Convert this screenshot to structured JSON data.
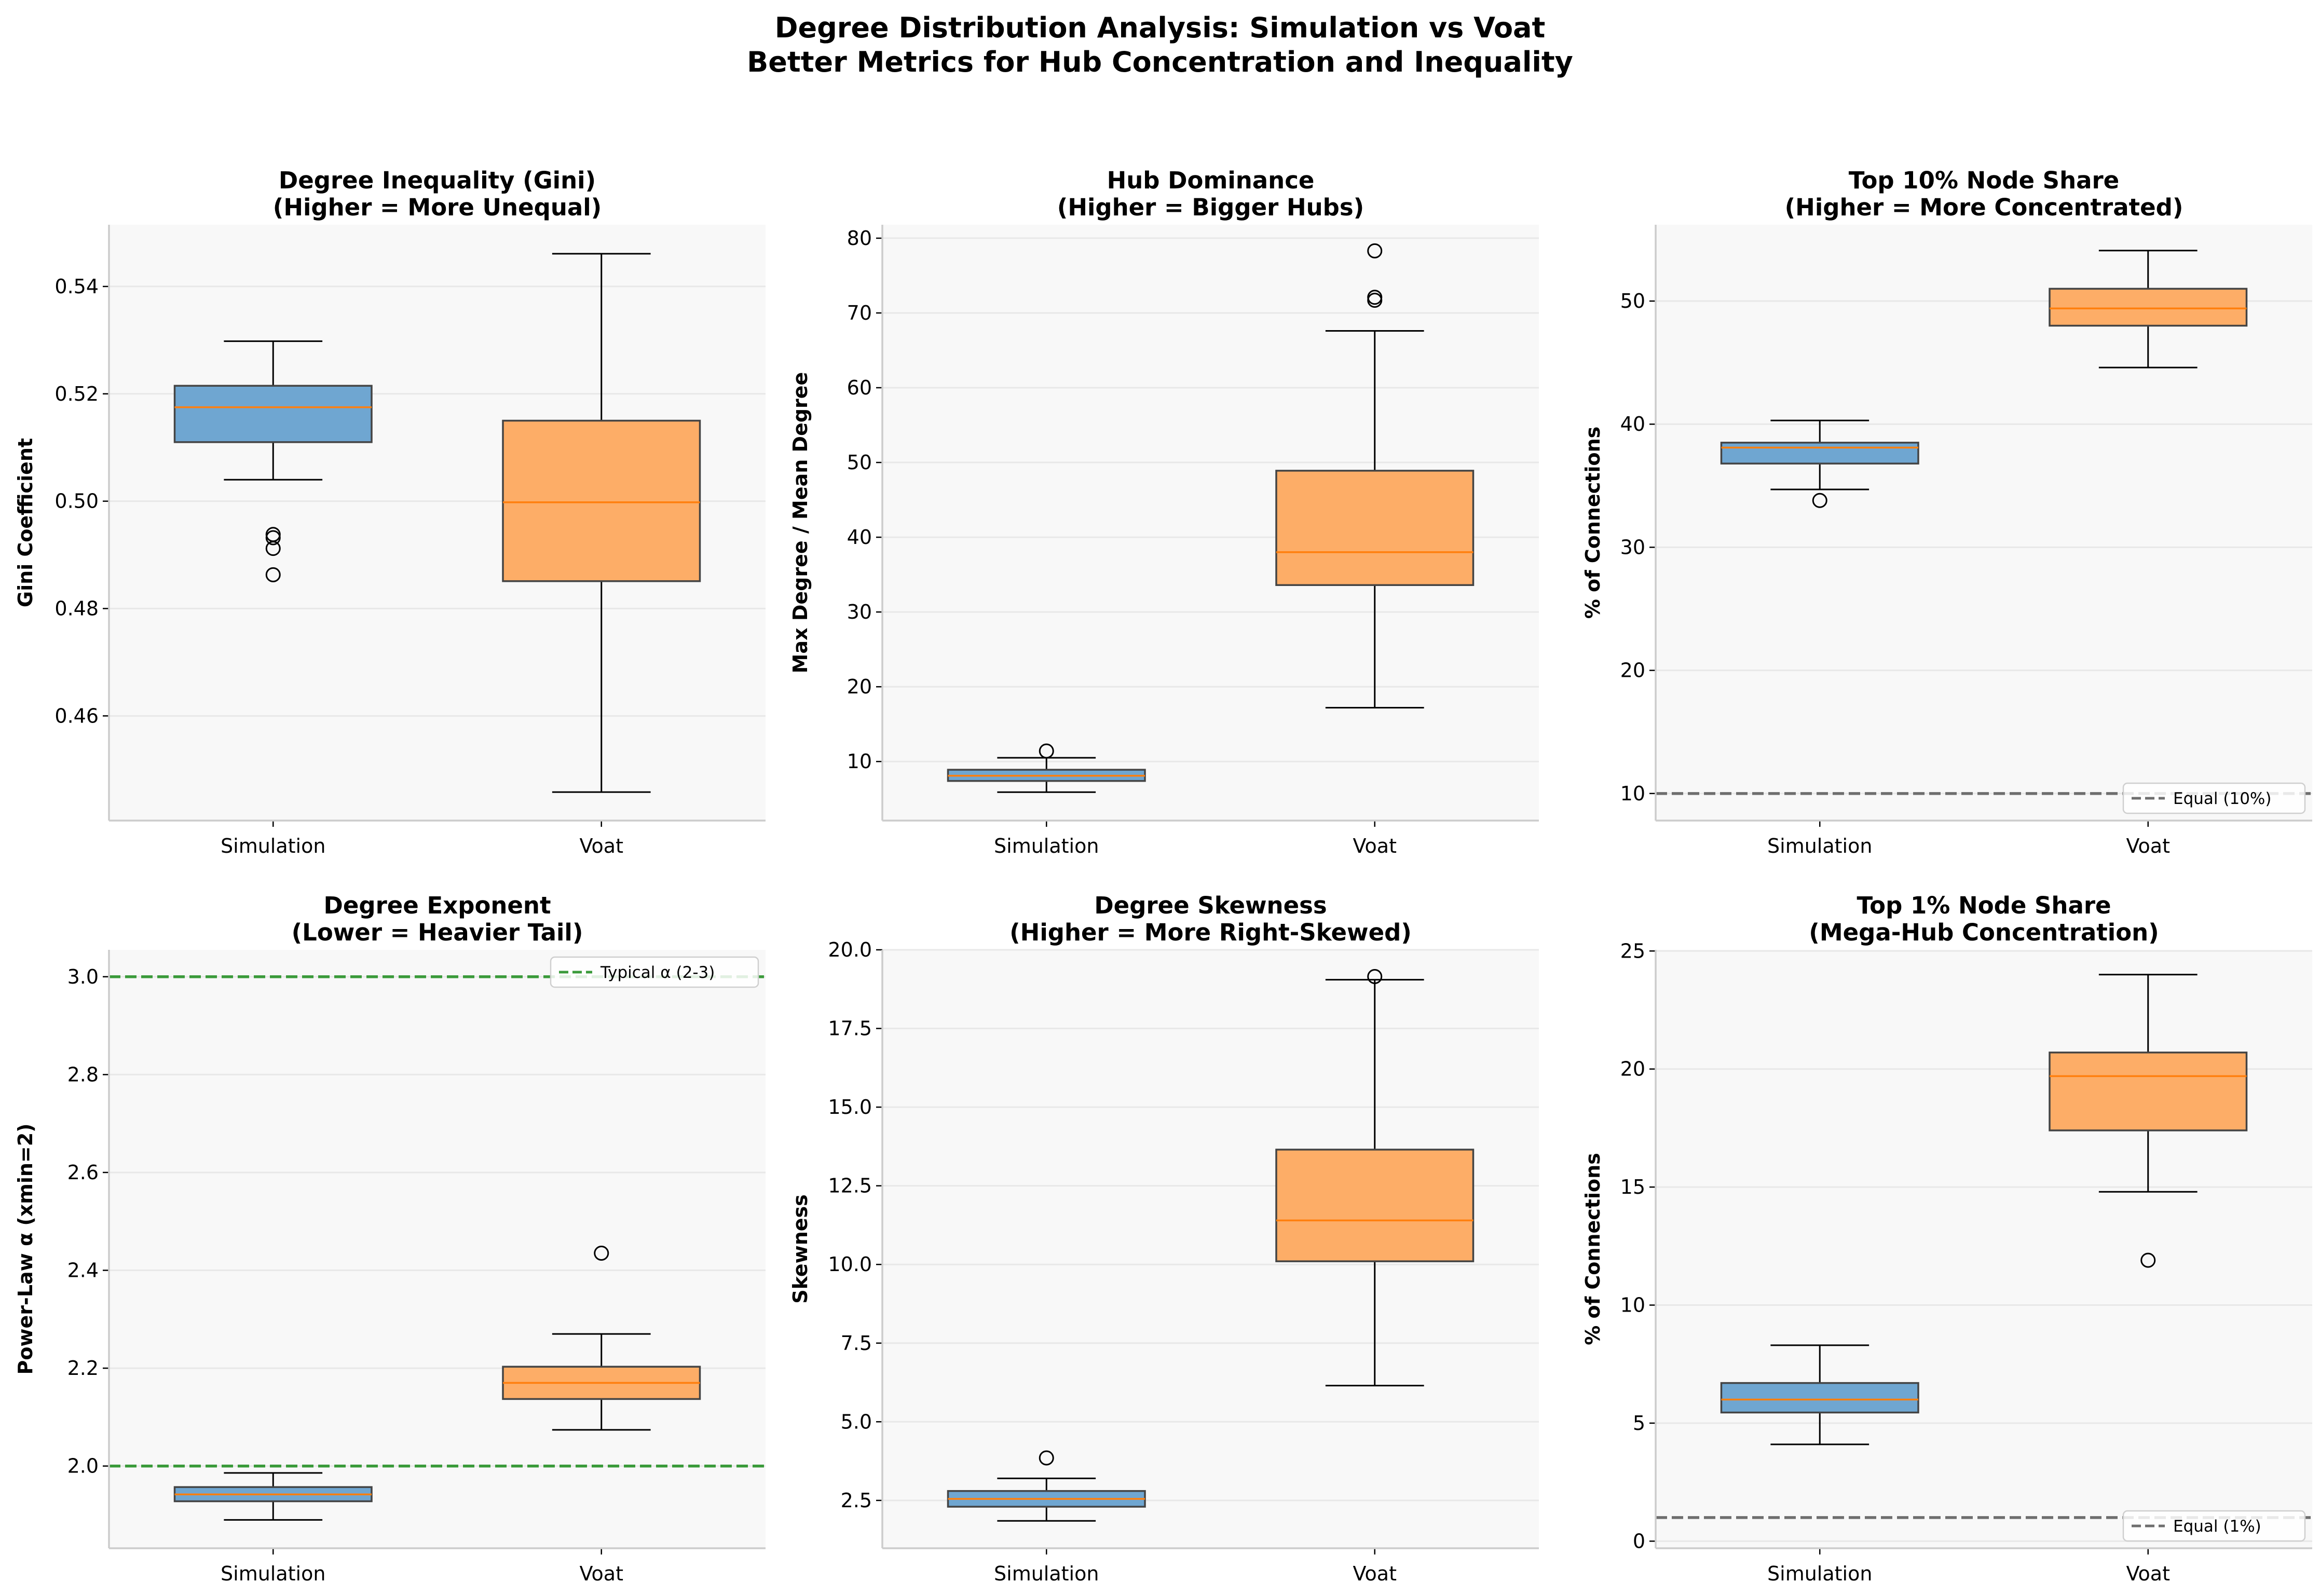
{
  "figure": {
    "title_line1": "Degree Distribution Analysis: Simulation vs Voat",
    "title_line2": "Better Metrics for Hub Concentration and Inequality"
  },
  "colors": {
    "simulation": "#6fa6d1",
    "voat": "#fdad67",
    "median": "#ff7f0e",
    "box_edge": "#444444",
    "panel_bg": "#f8f8f8",
    "grid": "#e8e8e8",
    "gray_ref": "#6e6e6e",
    "green_ref": "#3a9a3a"
  },
  "chart_data": [
    {
      "type": "box",
      "title_line1": "Degree Inequality (Gini)",
      "title_line2": "(Higher = More Unequal)",
      "ylabel": "Gini Coefficient",
      "categories": [
        "Simulation",
        "Voat"
      ],
      "ylim": [
        0.4405,
        0.5515
      ],
      "yticks": [
        0.46,
        0.48,
        0.5,
        0.52,
        0.54
      ],
      "ytick_labels": [
        "0.46",
        "0.48",
        "0.50",
        "0.52",
        "0.54"
      ],
      "series": [
        {
          "name": "Simulation",
          "whisker_low": 0.504,
          "q1": 0.511,
          "median": 0.5175,
          "q3": 0.5215,
          "whisker_high": 0.5298,
          "outliers": [
            0.4938,
            0.4932,
            0.4912,
            0.4863
          ]
        },
        {
          "name": "Voat",
          "whisker_low": 0.4458,
          "q1": 0.4851,
          "median": 0.4998,
          "q3": 0.515,
          "whisker_high": 0.5461,
          "outliers": []
        }
      ],
      "reference_lines": []
    },
    {
      "type": "box",
      "title_line1": "Hub Dominance",
      "title_line2": "(Higher = Bigger Hubs)",
      "ylabel": "Max Degree / Mean Degree",
      "categories": [
        "Simulation",
        "Voat"
      ],
      "ylim": [
        2.1,
        81.8
      ],
      "yticks": [
        10,
        20,
        30,
        40,
        50,
        60,
        70,
        80
      ],
      "ytick_labels": [
        "10",
        "20",
        "30",
        "40",
        "50",
        "60",
        "70",
        "80"
      ],
      "series": [
        {
          "name": "Simulation",
          "whisker_low": 5.9,
          "q1": 7.4,
          "median": 8.1,
          "q3": 8.9,
          "whisker_high": 10.5,
          "outliers": [
            11.4
          ]
        },
        {
          "name": "Voat",
          "whisker_low": 17.2,
          "q1": 33.6,
          "median": 38.0,
          "q3": 48.9,
          "whisker_high": 67.6,
          "outliers": [
            71.7,
            72.1,
            78.3
          ]
        }
      ],
      "reference_lines": []
    },
    {
      "type": "box",
      "title_line1": "Top 10% Node Share",
      "title_line2": "(Higher = More Concentrated)",
      "ylabel": "% of Connections",
      "categories": [
        "Simulation",
        "Voat"
      ],
      "ylim": [
        7.8,
        56.2
      ],
      "yticks": [
        10,
        20,
        30,
        40,
        50
      ],
      "ytick_labels": [
        "10",
        "20",
        "30",
        "40",
        "50"
      ],
      "series": [
        {
          "name": "Simulation",
          "whisker_low": 34.7,
          "q1": 36.8,
          "median": 38.1,
          "q3": 38.5,
          "whisker_high": 40.3,
          "outliers": [
            33.8
          ]
        },
        {
          "name": "Voat",
          "whisker_low": 44.6,
          "q1": 48.0,
          "median": 49.4,
          "q3": 51.0,
          "whisker_high": 54.1,
          "outliers": []
        }
      ],
      "reference_lines": [
        {
          "value": 10,
          "label": "Equal (10%)",
          "color": "gray",
          "legend_position": "lower right"
        }
      ]
    },
    {
      "type": "box",
      "title_line1": "Degree Exponent",
      "title_line2": "(Lower = Heavier Tail)",
      "ylabel": "Power-Law α (xmin=2)",
      "categories": [
        "Simulation",
        "Voat"
      ],
      "ylim": [
        1.832,
        3.055
      ],
      "yticks": [
        2.0,
        2.2,
        2.4,
        2.6,
        2.8,
        3.0
      ],
      "ytick_labels": [
        "2.0",
        "2.2",
        "2.4",
        "2.6",
        "2.8",
        "3.0"
      ],
      "series": [
        {
          "name": "Simulation",
          "whisker_low": 1.89,
          "q1": 1.928,
          "median": 1.942,
          "q3": 1.957,
          "whisker_high": 1.986,
          "outliers": []
        },
        {
          "name": "Voat",
          "whisker_low": 2.074,
          "q1": 2.137,
          "median": 2.17,
          "q3": 2.203,
          "whisker_high": 2.27,
          "outliers": [
            2.435
          ]
        }
      ],
      "reference_lines": [
        {
          "value": 3.0,
          "label": "Typical α (2-3)",
          "color": "green",
          "legend_position": "upper right"
        },
        {
          "value": 2.0,
          "label": "",
          "color": "green",
          "legend_position": ""
        }
      ]
    },
    {
      "type": "box",
      "title_line1": "Degree Skewness",
      "title_line2": "(Higher = More Right-Skewed)",
      "ylabel": "Skewness",
      "categories": [
        "Simulation",
        "Voat"
      ],
      "ylim": [
        0.98,
        20.0
      ],
      "yticks": [
        2.5,
        5.0,
        7.5,
        10.0,
        12.5,
        15.0,
        17.5,
        20.0
      ],
      "ytick_labels": [
        "2.5",
        "5.0",
        "7.5",
        "10.0",
        "12.5",
        "15.0",
        "17.5",
        "20.0"
      ],
      "series": [
        {
          "name": "Simulation",
          "whisker_low": 1.85,
          "q1": 2.3,
          "median": 2.55,
          "q3": 2.8,
          "whisker_high": 3.2,
          "outliers": [
            3.85
          ]
        },
        {
          "name": "Voat",
          "whisker_low": 6.15,
          "q1": 10.1,
          "median": 11.4,
          "q3": 13.65,
          "whisker_high": 19.05,
          "outliers": [
            19.15
          ]
        }
      ],
      "reference_lines": []
    },
    {
      "type": "box",
      "title_line1": "Top 1% Node Share",
      "title_line2": "(Mega-Hub Concentration)",
      "ylabel": "% of Connections",
      "categories": [
        "Simulation",
        "Voat"
      ],
      "ylim": [
        -0.3,
        25.05
      ],
      "yticks": [
        0,
        5,
        10,
        15,
        20,
        25
      ],
      "ytick_labels": [
        "0",
        "5",
        "10",
        "15",
        "20",
        "25"
      ],
      "series": [
        {
          "name": "Simulation",
          "whisker_low": 4.1,
          "q1": 5.45,
          "median": 6.0,
          "q3": 6.7,
          "whisker_high": 8.3,
          "outliers": []
        },
        {
          "name": "Voat",
          "whisker_low": 14.8,
          "q1": 17.4,
          "median": 19.7,
          "q3": 20.7,
          "whisker_high": 24.0,
          "outliers": [
            11.9
          ]
        }
      ],
      "reference_lines": [
        {
          "value": 1,
          "label": "Equal (1%)",
          "color": "gray",
          "legend_position": "lower right"
        }
      ]
    }
  ]
}
